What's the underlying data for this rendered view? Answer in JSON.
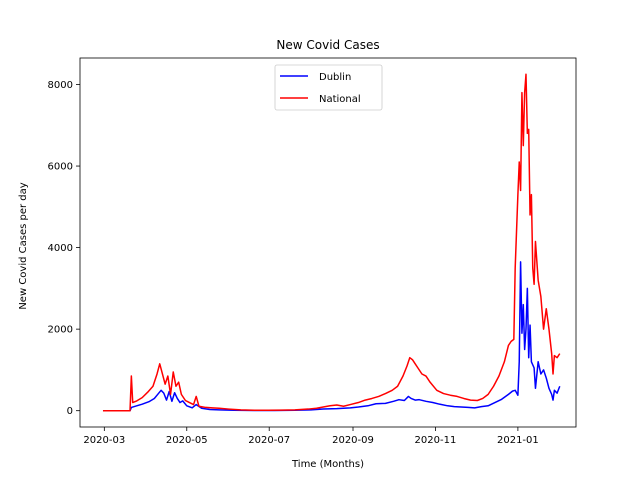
{
  "chart_data": {
    "type": "line",
    "title": "New Covid Cases",
    "xlabel": "Time (Months)",
    "ylabel": "New Covid Cases per day",
    "x_ticks": [
      "2020-03",
      "2020-05",
      "2020-07",
      "2020-09",
      "2020-11",
      "2021-01"
    ],
    "y_ticks": [
      "0",
      "2000",
      "4000",
      "6000",
      "8000"
    ],
    "xlim": [
      "2020-02-12",
      "2021-02-13"
    ],
    "ylim": [
      -400,
      8650
    ],
    "legend_position": "upper center",
    "grid": false,
    "series": [
      {
        "name": "Dublin",
        "color": "#0000ff",
        "points": [
          [
            "2020-02-29",
            0
          ],
          [
            "2020-03-10",
            0
          ],
          [
            "2020-03-20",
            0
          ],
          [
            "2020-03-21",
            80
          ],
          [
            "2020-03-25",
            120
          ],
          [
            "2020-03-29",
            160
          ],
          [
            "2020-04-03",
            220
          ],
          [
            "2020-04-07",
            300
          ],
          [
            "2020-04-10",
            420
          ],
          [
            "2020-04-12",
            500
          ],
          [
            "2020-04-14",
            430
          ],
          [
            "2020-04-16",
            260
          ],
          [
            "2020-04-18",
            470
          ],
          [
            "2020-04-20",
            230
          ],
          [
            "2020-04-22",
            440
          ],
          [
            "2020-04-24",
            300
          ],
          [
            "2020-04-26",
            200
          ],
          [
            "2020-04-28",
            240
          ],
          [
            "2020-05-01",
            120
          ],
          [
            "2020-05-05",
            70
          ],
          [
            "2020-05-08",
            150
          ],
          [
            "2020-05-12",
            60
          ],
          [
            "2020-05-18",
            30
          ],
          [
            "2020-05-25",
            20
          ],
          [
            "2020-06-05",
            10
          ],
          [
            "2020-06-20",
            5
          ],
          [
            "2020-07-05",
            5
          ],
          [
            "2020-07-20",
            10
          ],
          [
            "2020-08-01",
            20
          ],
          [
            "2020-08-10",
            40
          ],
          [
            "2020-08-20",
            50
          ],
          [
            "2020-08-30",
            70
          ],
          [
            "2020-09-05",
            90
          ],
          [
            "2020-09-12",
            120
          ],
          [
            "2020-09-18",
            170
          ],
          [
            "2020-09-25",
            180
          ],
          [
            "2020-10-01",
            230
          ],
          [
            "2020-10-05",
            270
          ],
          [
            "2020-10-09",
            250
          ],
          [
            "2020-10-12",
            350
          ],
          [
            "2020-10-14",
            300
          ],
          [
            "2020-10-17",
            260
          ],
          [
            "2020-10-20",
            270
          ],
          [
            "2020-10-25",
            230
          ],
          [
            "2020-10-30",
            200
          ],
          [
            "2020-11-04",
            160
          ],
          [
            "2020-11-10",
            120
          ],
          [
            "2020-11-15",
            100
          ],
          [
            "2020-11-20",
            90
          ],
          [
            "2020-11-25",
            80
          ],
          [
            "2020-11-30",
            70
          ],
          [
            "2020-12-05",
            100
          ],
          [
            "2020-12-10",
            120
          ],
          [
            "2020-12-15",
            200
          ],
          [
            "2020-12-20",
            280
          ],
          [
            "2020-12-25",
            400
          ],
          [
            "2020-12-28",
            480
          ],
          [
            "2020-12-30",
            500
          ],
          [
            "2021-01-01",
            380
          ],
          [
            "2021-01-02",
            1200
          ],
          [
            "2021-01-03",
            3650
          ],
          [
            "2021-01-04",
            1900
          ],
          [
            "2021-01-05",
            2600
          ],
          [
            "2021-01-06",
            1500
          ],
          [
            "2021-01-07",
            2000
          ],
          [
            "2021-01-08",
            3000
          ],
          [
            "2021-01-09",
            1300
          ],
          [
            "2021-01-10",
            2100
          ],
          [
            "2021-01-11",
            1200
          ],
          [
            "2021-01-13",
            1050
          ],
          [
            "2021-01-14",
            550
          ],
          [
            "2021-01-16",
            1200
          ],
          [
            "2021-01-18",
            900
          ],
          [
            "2021-01-20",
            1000
          ],
          [
            "2021-01-22",
            800
          ],
          [
            "2021-01-24",
            550
          ],
          [
            "2021-01-26",
            400
          ],
          [
            "2021-01-27",
            260
          ],
          [
            "2021-01-28",
            500
          ],
          [
            "2021-01-30",
            430
          ],
          [
            "2021-02-01",
            600
          ]
        ]
      },
      {
        "name": "National",
        "color": "#ff0000",
        "points": [
          [
            "2020-02-29",
            0
          ],
          [
            "2020-03-10",
            0
          ],
          [
            "2020-03-20",
            0
          ],
          [
            "2020-03-21",
            850
          ],
          [
            "2020-03-22",
            200
          ],
          [
            "2020-03-25",
            240
          ],
          [
            "2020-03-29",
            320
          ],
          [
            "2020-04-02",
            450
          ],
          [
            "2020-04-06",
            600
          ],
          [
            "2020-04-09",
            900
          ],
          [
            "2020-04-11",
            1150
          ],
          [
            "2020-04-13",
            900
          ],
          [
            "2020-04-15",
            650
          ],
          [
            "2020-04-17",
            850
          ],
          [
            "2020-04-19",
            400
          ],
          [
            "2020-04-21",
            950
          ],
          [
            "2020-04-23",
            600
          ],
          [
            "2020-04-25",
            700
          ],
          [
            "2020-04-27",
            400
          ],
          [
            "2020-04-30",
            250
          ],
          [
            "2020-05-03",
            200
          ],
          [
            "2020-05-06",
            150
          ],
          [
            "2020-05-08",
            350
          ],
          [
            "2020-05-10",
            110
          ],
          [
            "2020-05-15",
            80
          ],
          [
            "2020-05-20",
            70
          ],
          [
            "2020-05-25",
            60
          ],
          [
            "2020-06-01",
            40
          ],
          [
            "2020-06-10",
            20
          ],
          [
            "2020-06-20",
            10
          ],
          [
            "2020-06-30",
            10
          ],
          [
            "2020-07-10",
            15
          ],
          [
            "2020-07-20",
            20
          ],
          [
            "2020-07-30",
            40
          ],
          [
            "2020-08-05",
            60
          ],
          [
            "2020-08-10",
            90
          ],
          [
            "2020-08-15",
            120
          ],
          [
            "2020-08-20",
            140
          ],
          [
            "2020-08-25",
            110
          ],
          [
            "2020-08-30",
            150
          ],
          [
            "2020-09-05",
            200
          ],
          [
            "2020-09-10",
            260
          ],
          [
            "2020-09-15",
            300
          ],
          [
            "2020-09-20",
            350
          ],
          [
            "2020-09-25",
            420
          ],
          [
            "2020-09-30",
            500
          ],
          [
            "2020-10-04",
            600
          ],
          [
            "2020-10-08",
            850
          ],
          [
            "2020-10-11",
            1100
          ],
          [
            "2020-10-13",
            1300
          ],
          [
            "2020-10-15",
            1250
          ],
          [
            "2020-10-17",
            1150
          ],
          [
            "2020-10-19",
            1050
          ],
          [
            "2020-10-22",
            900
          ],
          [
            "2020-10-25",
            850
          ],
          [
            "2020-10-28",
            700
          ],
          [
            "2020-11-02",
            500
          ],
          [
            "2020-11-07",
            420
          ],
          [
            "2020-11-12",
            380
          ],
          [
            "2020-11-17",
            350
          ],
          [
            "2020-11-22",
            300
          ],
          [
            "2020-11-27",
            260
          ],
          [
            "2020-12-02",
            250
          ],
          [
            "2020-12-06",
            300
          ],
          [
            "2020-12-10",
            400
          ],
          [
            "2020-12-14",
            600
          ],
          [
            "2020-12-18",
            850
          ],
          [
            "2020-12-22",
            1200
          ],
          [
            "2020-12-25",
            1600
          ],
          [
            "2020-12-27",
            1700
          ],
          [
            "2020-12-29",
            1750
          ],
          [
            "2020-12-30",
            3500
          ],
          [
            "2021-01-01",
            5300
          ],
          [
            "2021-01-02",
            6100
          ],
          [
            "2021-01-03",
            5400
          ],
          [
            "2021-01-04",
            7800
          ],
          [
            "2021-01-05",
            6500
          ],
          [
            "2021-01-06",
            7800
          ],
          [
            "2021-01-07",
            8250
          ],
          [
            "2021-01-08",
            6800
          ],
          [
            "2021-01-09",
            6900
          ],
          [
            "2021-01-10",
            4800
          ],
          [
            "2021-01-11",
            5300
          ],
          [
            "2021-01-12",
            3500
          ],
          [
            "2021-01-13",
            3100
          ],
          [
            "2021-01-14",
            4150
          ],
          [
            "2021-01-16",
            3200
          ],
          [
            "2021-01-18",
            2800
          ],
          [
            "2021-01-20",
            2000
          ],
          [
            "2021-01-22",
            2500
          ],
          [
            "2021-01-24",
            2000
          ],
          [
            "2021-01-26",
            1400
          ],
          [
            "2021-01-27",
            900
          ],
          [
            "2021-01-28",
            1350
          ],
          [
            "2021-01-30",
            1300
          ],
          [
            "2021-02-01",
            1400
          ]
        ]
      }
    ]
  }
}
